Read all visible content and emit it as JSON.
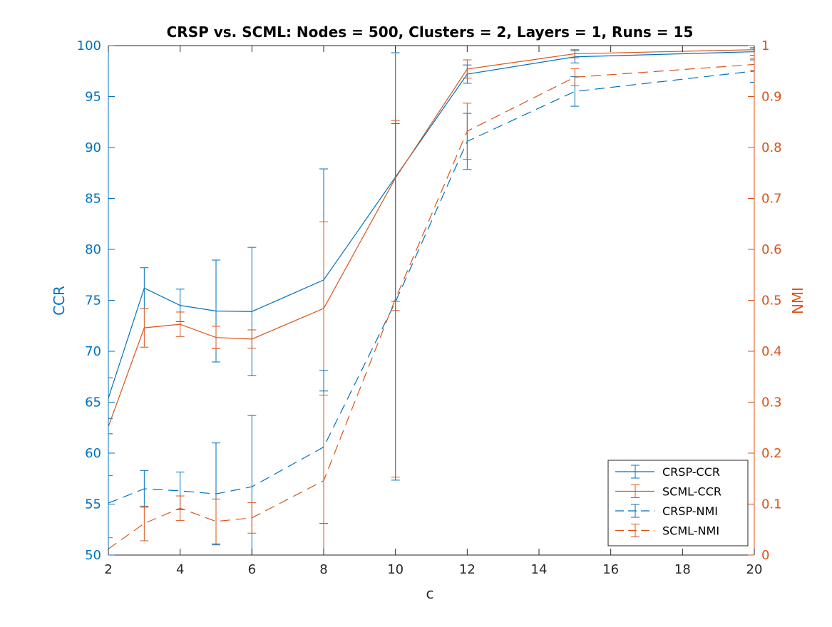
{
  "chart_data": {
    "type": "line",
    "title": "CRSP vs. SCML: Nodes = 500, Clusters = 2, Layers = 1, Runs = 15",
    "xlabel": "c",
    "ylabel_left": "CCR",
    "ylabel_right": "NMI",
    "xlim": [
      2,
      20
    ],
    "ylim_left": [
      50,
      100
    ],
    "ylim_right": [
      0,
      1
    ],
    "x_ticks": [
      2,
      4,
      6,
      8,
      10,
      12,
      14,
      16,
      18,
      20
    ],
    "y_left_ticks": [
      50,
      55,
      60,
      65,
      70,
      75,
      80,
      85,
      90,
      95,
      100
    ],
    "y_right_ticks": [
      "0",
      "0.1",
      "0.2",
      "0.3",
      "0.4",
      "0.5",
      "0.6",
      "0.7",
      "0.8",
      "0.9",
      "1"
    ],
    "y_right_tick_values": [
      0,
      0.1,
      0.2,
      0.3,
      0.4,
      0.5,
      0.6,
      0.7,
      0.8,
      0.9,
      1.0
    ],
    "grid": false,
    "legend_position": "bottom-right",
    "colors": {
      "crsp": "#0072bd",
      "scml": "#d95319",
      "left_axis": "#0072bd",
      "right_axis": "#d95319"
    },
    "x": [
      2,
      3,
      4,
      5,
      6,
      8,
      10,
      12,
      15,
      20
    ],
    "series": [
      {
        "name": "CRSP-CCR",
        "axis": "left",
        "color": "crsp",
        "dash": "solid",
        "values": [
          65.4,
          76.2,
          74.5,
          73.95,
          73.9,
          77.0,
          87.1,
          97.2,
          98.9,
          99.4
        ],
        "err": [
          2.0,
          2.0,
          1.6,
          5.0,
          6.3,
          10.9,
          12.2,
          0.9,
          0.6,
          0.35
        ]
      },
      {
        "name": "SCML-CCR",
        "axis": "left",
        "color": "scml",
        "dash": "solid",
        "values": [
          62.6,
          72.3,
          72.65,
          71.35,
          71.2,
          74.2,
          87.0,
          97.7,
          99.2,
          99.6
        ],
        "err": [
          4.8,
          1.9,
          1.2,
          1.1,
          0.9,
          8.5,
          13.0,
          0.9,
          0.4,
          0.2
        ]
      },
      {
        "name": "CRSP-NMI",
        "axis": "right",
        "color": "crsp",
        "dash": "long",
        "values": [
          0.102,
          0.13,
          0.126,
          0.12,
          0.134,
          0.212,
          0.497,
          0.812,
          0.91,
          0.95
        ],
        "err": [
          0.136,
          0.036,
          0.037,
          0.1,
          0.14,
          0.15,
          0.35,
          0.055,
          0.029,
          0.022
        ]
      },
      {
        "name": "SCML-NMI",
        "axis": "right",
        "color": "scml",
        "dash": "long",
        "values": [
          0.012,
          0.062,
          0.092,
          0.066,
          0.073,
          0.146,
          0.503,
          0.832,
          0.938,
          0.963
        ],
        "err": [
          0.022,
          0.034,
          0.024,
          0.044,
          0.03,
          0.168,
          0.35,
          0.055,
          0.017,
          0.012
        ]
      }
    ]
  }
}
